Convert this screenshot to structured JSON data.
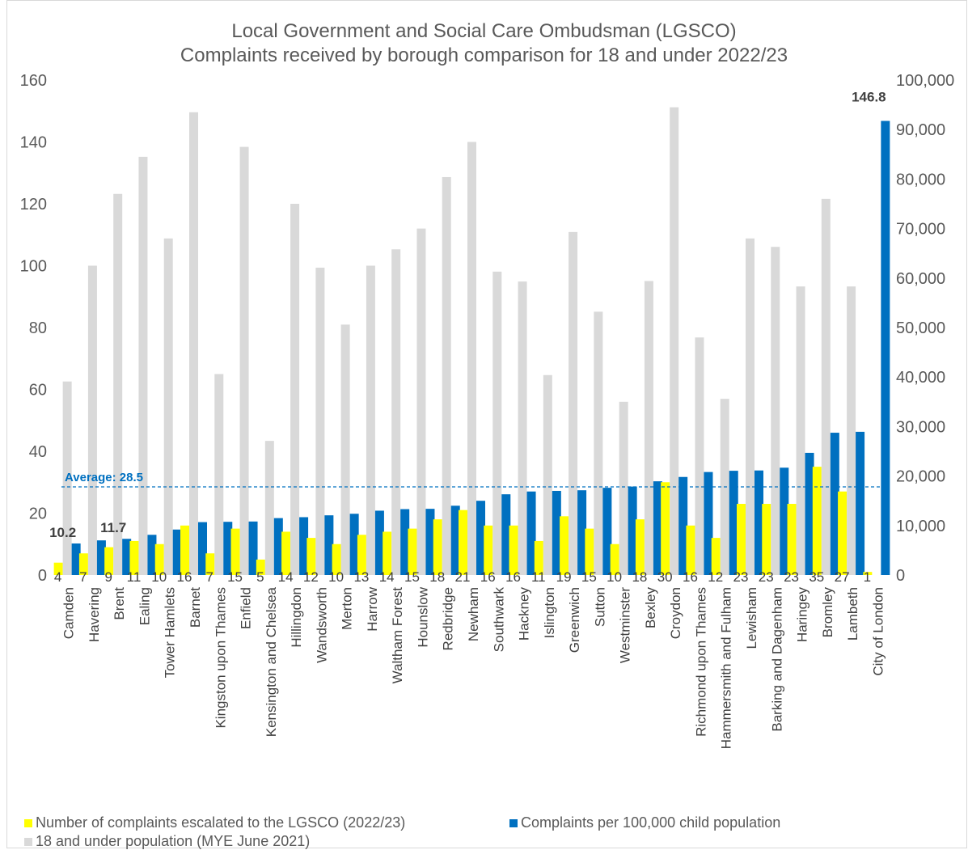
{
  "chart_data": {
    "type": "bar",
    "title": "Local Government and Social Care Ombudsman (LGSCO)",
    "subtitle": "Complaints received by borough comparison for 18 and under 2022/23",
    "categories": [
      "Camden",
      "Havering",
      "Brent",
      "Ealing",
      "Tower Hamlets",
      "Barnet",
      "Kingston upon Thames",
      "Enfield",
      "Kensington and Chelsea",
      "Hillingdon",
      "Wandsworth",
      "Merton",
      "Harrow",
      "Waltham Forest",
      "Hounslow",
      "Redbridge",
      "Newham",
      "Southwark",
      "Hackney",
      "Islington",
      "Greenwich",
      "Sutton",
      "Westminster",
      "Bexley",
      "Croydon",
      "Richmond upon Thames",
      "Hammersmith and Fulham",
      "Lewisham",
      "Barking and Dagenham",
      "Haringey",
      "Bromley",
      "Lambeth",
      "City of London"
    ],
    "series": [
      {
        "name": "18 and under population (MYE June 2021)",
        "axis": "right",
        "color": "#d9d9d9",
        "values": [
          39100,
          62500,
          77000,
          84500,
          68000,
          93500,
          40600,
          86500,
          27100,
          75000,
          62100,
          50600,
          62500,
          65800,
          70000,
          80400,
          87500,
          61300,
          59300,
          40400,
          69300,
          53200,
          35000,
          59400,
          94500,
          48000,
          35600,
          68000,
          66300,
          58300,
          76000,
          58300,
          0
        ]
      },
      {
        "name": "Number of complaints escalated to the LGSCO (2022/23)",
        "axis": "left",
        "color": "#ffff00",
        "values": [
          4,
          7,
          9,
          11,
          10,
          16,
          7,
          15,
          5,
          14,
          12,
          10,
          13,
          14,
          15,
          18,
          21,
          16,
          16,
          11,
          19,
          15,
          10,
          18,
          30,
          16,
          12,
          23,
          23,
          23,
          35,
          27,
          1
        ]
      },
      {
        "name": "Complaints per 100,000 child population",
        "axis": "left",
        "color": "#0070c0",
        "values": [
          10.2,
          11.2,
          11.7,
          13.0,
          14.7,
          17.1,
          17.2,
          17.3,
          18.4,
          18.7,
          19.3,
          19.8,
          20.8,
          21.3,
          21.4,
          22.4,
          24.0,
          26.1,
          27.0,
          27.2,
          27.4,
          28.2,
          28.6,
          30.3,
          31.7,
          33.3,
          33.7,
          33.8,
          34.7,
          39.5,
          46.0,
          46.3,
          146.8
        ]
      }
    ],
    "left_axis": {
      "min": 0,
      "max": 160,
      "step": 20,
      "ticks": [
        "0",
        "20",
        "40",
        "60",
        "80",
        "100",
        "120",
        "140",
        "160"
      ]
    },
    "right_axis": {
      "min": 0,
      "max": 100000,
      "step": 10000,
      "ticks": [
        "0",
        "10,000",
        "20,000",
        "30,000",
        "40,000",
        "50,000",
        "60,000",
        "70,000",
        "80,000",
        "90,000",
        "100,000"
      ]
    },
    "average": {
      "value": 28.5,
      "label": "Average: 28.5",
      "color": "#0070c0"
    },
    "highlight_labels": [
      {
        "category": "Camden",
        "text": "10.2"
      },
      {
        "category": "Brent",
        "text": "11.7"
      },
      {
        "category": "City of London",
        "text": "146.8"
      }
    ],
    "grid": false,
    "legend_position": "bottom-left"
  }
}
